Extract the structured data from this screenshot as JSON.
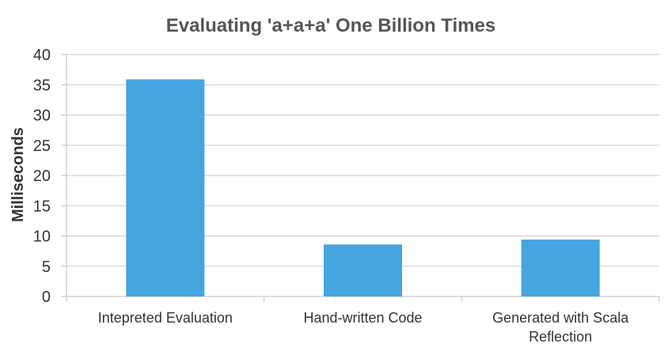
{
  "chart_data": {
    "type": "bar",
    "title": "Evaluating 'a+a+a' One Billion Times",
    "xlabel": "",
    "ylabel": "Milliseconds",
    "categories": [
      [
        "Intepreted Evaluation"
      ],
      [
        "Hand-written Code"
      ],
      [
        "Generated with Scala",
        "Reflection"
      ]
    ],
    "values": [
      35.9,
      8.6,
      9.4
    ],
    "ylim": [
      0,
      40
    ],
    "yticks": [
      "0",
      "5",
      "10",
      "15",
      "20",
      "25",
      "30",
      "35",
      "40"
    ],
    "grid": true,
    "legend": "none",
    "bar_color": "#46a4e0"
  }
}
